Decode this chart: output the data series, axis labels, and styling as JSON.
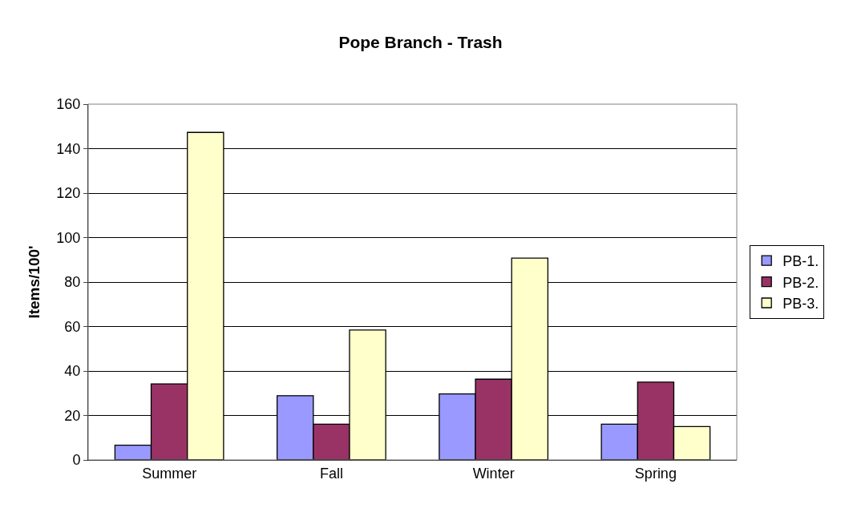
{
  "chart_data": {
    "type": "bar",
    "title": "Pope Branch - Trash",
    "ylabel": "Items/100'",
    "categories": [
      "Summer",
      "Fall",
      "Winter",
      "Spring"
    ],
    "series": [
      {
        "name": "PB-1.",
        "color": "#9999ff",
        "values": [
          6.6,
          28.9,
          29.7,
          16.1
        ]
      },
      {
        "name": "PB-2.",
        "color": "#993366",
        "values": [
          34.2,
          16.1,
          36.3,
          35.0
        ]
      },
      {
        "name": "PB-3.",
        "color": "#ffffcc",
        "values": [
          147.3,
          58.4,
          90.8,
          15.0
        ]
      }
    ],
    "ylim": [
      0,
      160
    ],
    "yticks": [
      0,
      20,
      40,
      60,
      80,
      100,
      120,
      140,
      160
    ],
    "grid": "y",
    "legend": "right"
  }
}
